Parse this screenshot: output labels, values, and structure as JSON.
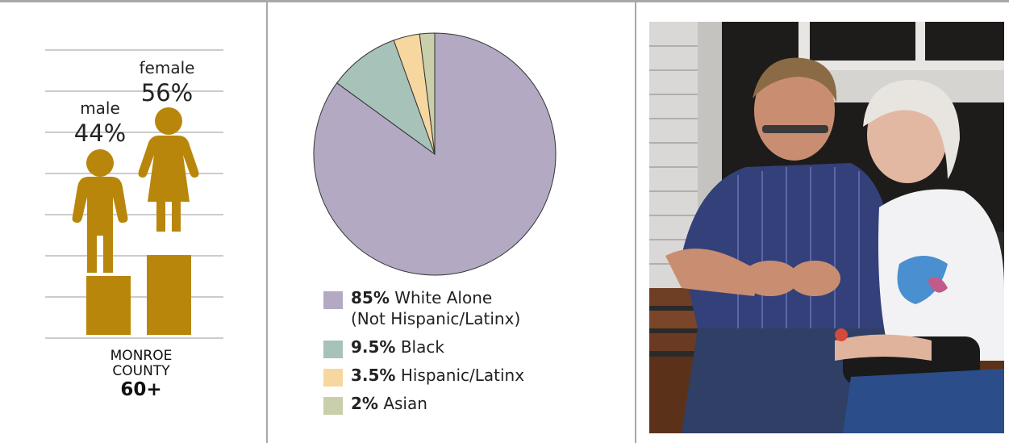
{
  "gender_chart": {
    "male": {
      "label": "male",
      "percent_text": "44%",
      "value": 44
    },
    "female": {
      "label": "female",
      "percent_text": "56%",
      "value": 56
    },
    "icon_color": "#b8860b",
    "county_line1": "MONROE",
    "county_line2": "COUNTY",
    "age_group": "60+"
  },
  "chart_data": [
    {
      "type": "bar",
      "categories": [
        "male",
        "female"
      ],
      "values": [
        44,
        56
      ],
      "data_labels": [
        "44%",
        "56%"
      ],
      "title": "",
      "xlabel": "MONROE COUNTY 60+",
      "grid": true,
      "colors": [
        "#b8860b",
        "#b8860b"
      ]
    },
    {
      "type": "pie",
      "categories": [
        "White Alone (Not Hispanic/Latinx)",
        "Black",
        "Hispanic/Latinx",
        "Asian"
      ],
      "values": [
        85,
        9.5,
        3.5,
        2
      ],
      "colors": [
        "#b3a9c3",
        "#a7c2b8",
        "#f6d7a0",
        "#c8cfaa"
      ],
      "legend_placement": "bottom",
      "legend": [
        {
          "pct": "85%",
          "line1": "White Alone",
          "line2": "(Not Hispanic/Latinx)",
          "color": "#b3a9c3"
        },
        {
          "pct": "9.5%",
          "line1": "Black",
          "line2": "",
          "color": "#a7c2b8"
        },
        {
          "pct": "3.5%",
          "line1": "Hispanic/Latinx",
          "line2": "",
          "color": "#f6d7a0"
        },
        {
          "pct": "2%",
          "line1": "Asian",
          "line2": "",
          "color": "#c8cfaa"
        }
      ]
    }
  ],
  "photo": {
    "alt": "Elderly couple sitting on a bench looking at something in the man's hands"
  }
}
